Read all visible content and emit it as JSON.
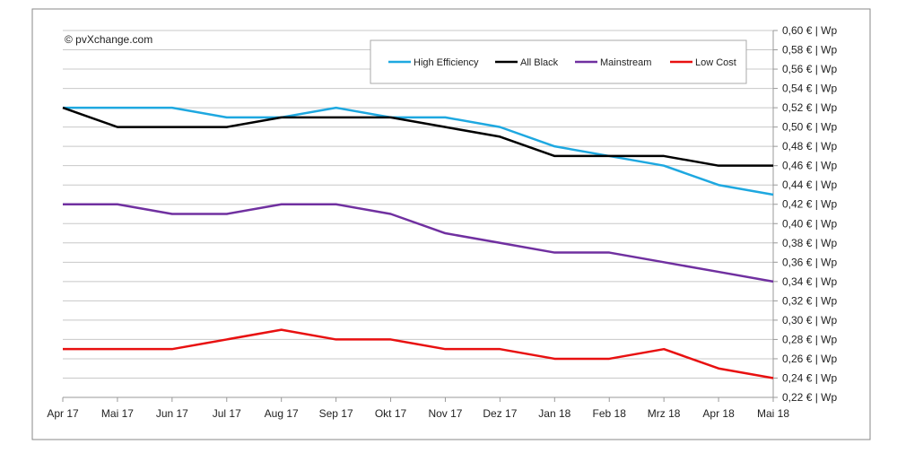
{
  "chart_data": {
    "type": "line",
    "copyright": "© pvXchange.com",
    "categories": [
      "Apr 17",
      "Mai 17",
      "Jun 17",
      "Jul 17",
      "Aug 17",
      "Sep 17",
      "Okt 17",
      "Nov 17",
      "Dez 17",
      "Jan 18",
      "Feb 18",
      "Mrz 18",
      "Apr 18",
      "Mai 18"
    ],
    "ylim": [
      0.22,
      0.6
    ],
    "ytick_step": 0.02,
    "ytick_format": "{v} € | Wp",
    "yaxis_side": "right",
    "grid": true,
    "legend_position": "top-right",
    "series": [
      {
        "name": "High Efficiency",
        "color": "#1ea8e0",
        "values": [
          0.52,
          0.52,
          0.52,
          0.51,
          0.51,
          0.52,
          0.51,
          0.51,
          0.5,
          0.48,
          0.47,
          0.46,
          0.44,
          0.43
        ]
      },
      {
        "name": "All Black",
        "color": "#000000",
        "values": [
          0.52,
          0.5,
          0.5,
          0.5,
          0.51,
          0.51,
          0.51,
          0.5,
          0.49,
          0.47,
          0.47,
          0.47,
          0.46,
          0.46
        ]
      },
      {
        "name": "Mainstream",
        "color": "#7030a0",
        "values": [
          0.42,
          0.42,
          0.41,
          0.41,
          0.42,
          0.42,
          0.41,
          0.39,
          0.38,
          0.37,
          0.37,
          0.36,
          0.35,
          0.34
        ]
      },
      {
        "name": "Low Cost",
        "color": "#e81010",
        "values": [
          0.27,
          0.27,
          0.27,
          0.28,
          0.29,
          0.28,
          0.28,
          0.27,
          0.27,
          0.26,
          0.26,
          0.27,
          0.25,
          0.24
        ]
      }
    ]
  }
}
